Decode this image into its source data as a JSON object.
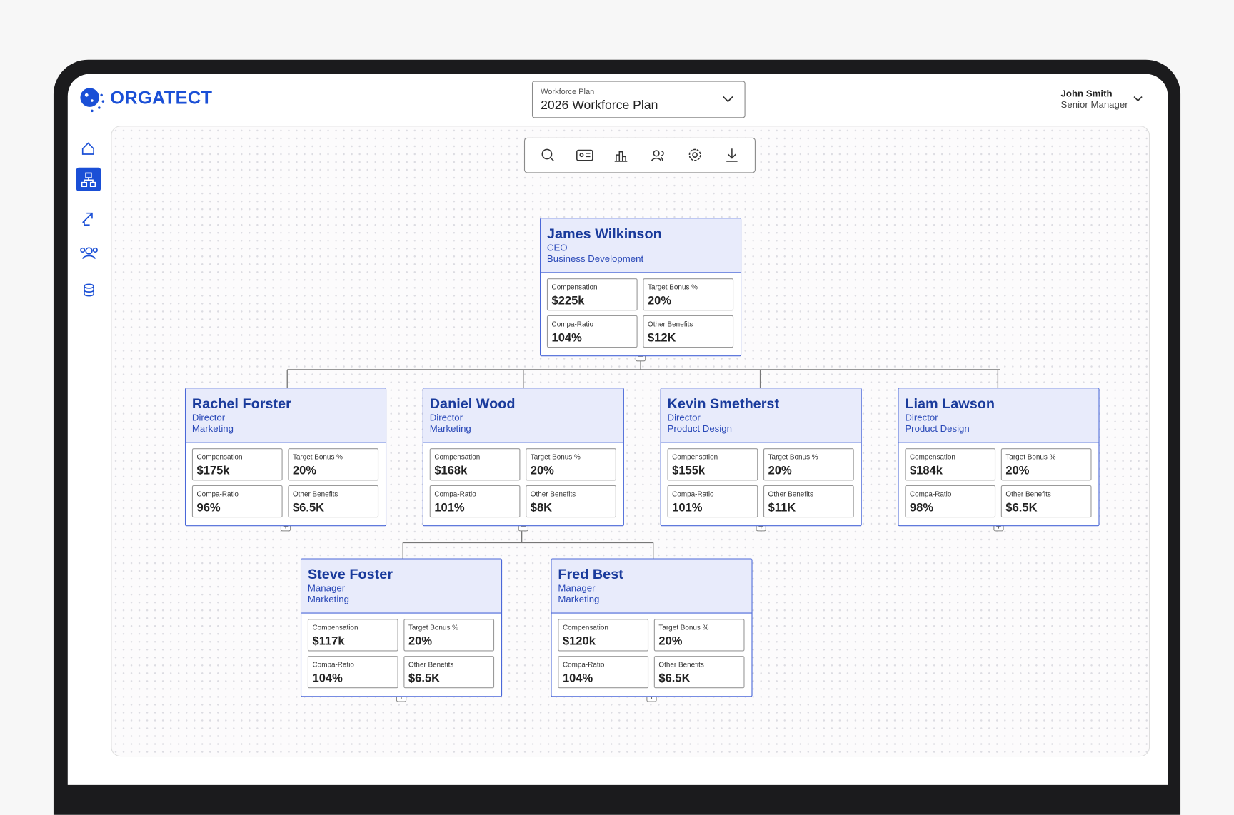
{
  "app_name": "ORGATECT",
  "plan": {
    "label": "Workforce Plan",
    "value": "2026 Workforce Plan"
  },
  "user": {
    "name": "John Smith",
    "role": "Senior Manager"
  },
  "metric_labels": [
    "Compensation",
    "Target Bonus %",
    "Compa-Ratio",
    "Other Benefits"
  ],
  "nodes": [
    {
      "name": "James Wilkinson",
      "title": "CEO",
      "department": "Business Development",
      "metrics": [
        "$225k",
        "20%",
        "104%",
        "$12K"
      ]
    },
    {
      "name": "Rachel Forster",
      "title": "Director",
      "department": "Marketing",
      "metrics": [
        "$175k",
        "20%",
        "96%",
        "$6.5K"
      ]
    },
    {
      "name": "Daniel Wood",
      "title": "Director",
      "department": "Marketing",
      "metrics": [
        "$168k",
        "20%",
        "101%",
        "$8K"
      ]
    },
    {
      "name": "Kevin Smetherst",
      "title": "Director",
      "department": "Product Design",
      "metrics": [
        "$155k",
        "20%",
        "101%",
        "$11K"
      ]
    },
    {
      "name": "Liam Lawson",
      "title": "Director",
      "department": "Product Design",
      "metrics": [
        "$184k",
        "20%",
        "98%",
        "$6.5K"
      ]
    },
    {
      "name": "Steve Foster",
      "title": "Manager",
      "department": "Marketing",
      "metrics": [
        "$117k",
        "20%",
        "104%",
        "$6.5K"
      ]
    },
    {
      "name": "Fred Best",
      "title": "Manager",
      "department": "Marketing",
      "metrics": [
        "$120k",
        "20%",
        "104%",
        "$6.5K"
      ]
    }
  ]
}
